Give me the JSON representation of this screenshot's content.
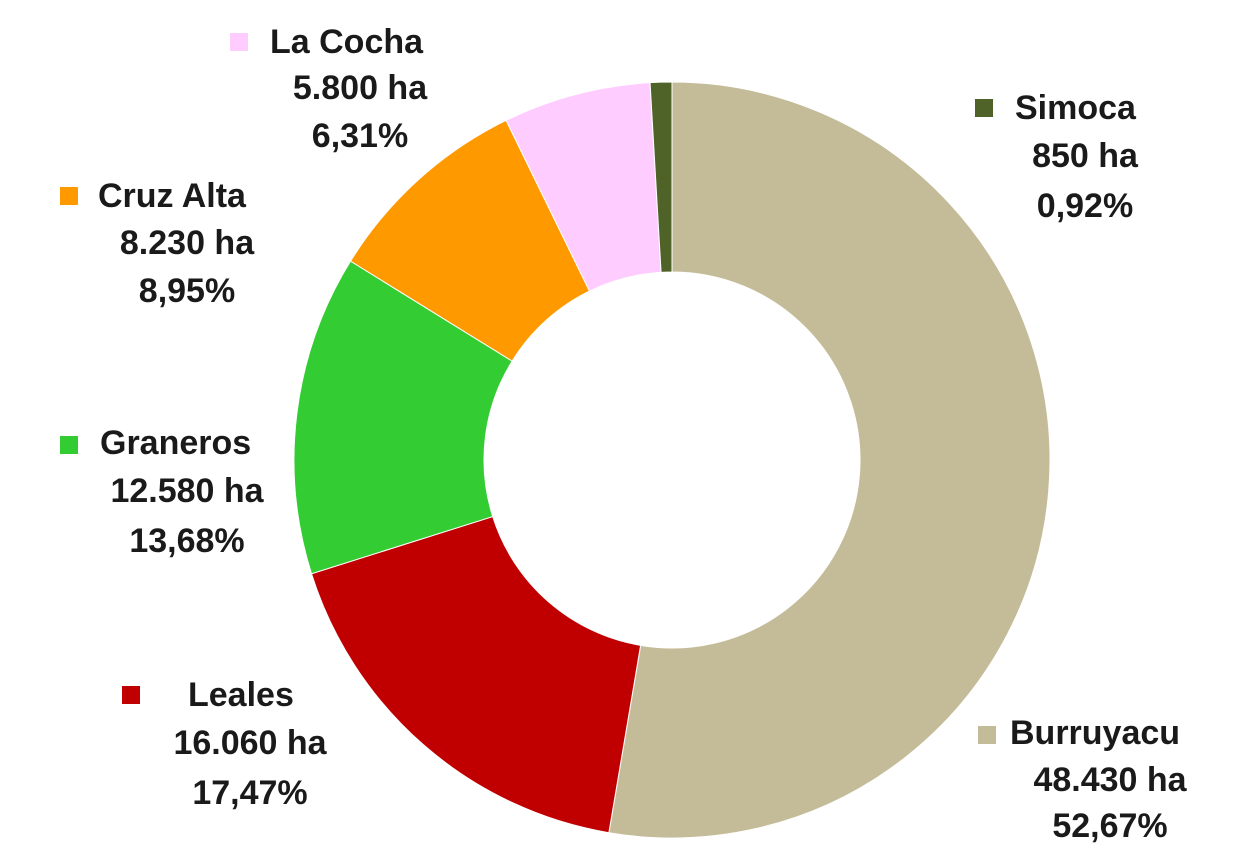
{
  "chart_data": {
    "type": "donut",
    "categories": [
      "Burruyacu",
      "Leales",
      "Graneros",
      "Cruz Alta",
      "La Cocha",
      "Simoca"
    ],
    "values": [
      48430,
      16060,
      12580,
      8230,
      5800,
      850
    ],
    "value_labels": [
      "48.430 ha",
      "16.060 ha",
      "12.580 ha",
      "8.230 ha",
      "5.800 ha",
      "850 ha"
    ],
    "percent_labels": [
      "52,67%",
      "17,47%",
      "13,68%",
      "8,95%",
      "6,31%",
      "0,92%"
    ],
    "colors": [
      "#c4bc98",
      "#c00000",
      "#33cc33",
      "#ff9900",
      "#ffccff",
      "#4f6228"
    ]
  }
}
